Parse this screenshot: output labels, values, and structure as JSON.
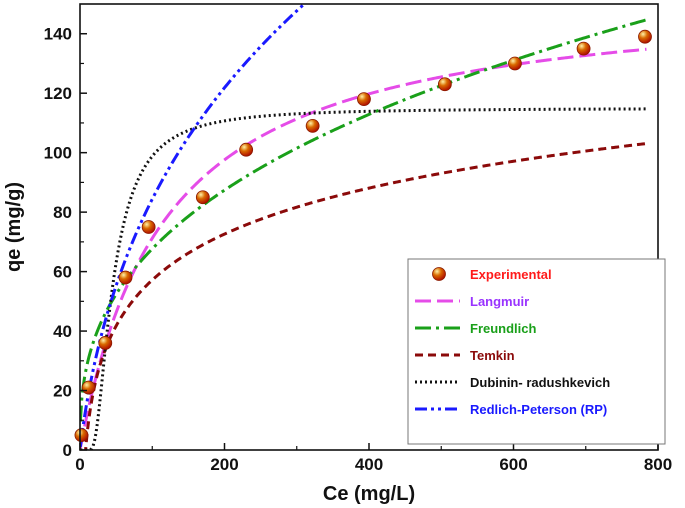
{
  "chart_data": {
    "type": "scatter",
    "title": "",
    "xlabel": "Ce (mg/L)",
    "ylabel": "qe (mg/g)",
    "xlim": [
      0,
      800
    ],
    "ylim": [
      0,
      150
    ],
    "xticks": [
      0,
      200,
      400,
      600,
      800
    ],
    "yticks": [
      0,
      20,
      40,
      60,
      80,
      100,
      120,
      140
    ],
    "xtick_labels": [
      "0",
      "200",
      "400",
      "600",
      "800"
    ],
    "ytick_labels": [
      "0",
      "20",
      "40",
      "60",
      "80",
      "100",
      "120",
      "140"
    ],
    "legend_position": "bottom-right",
    "experimental": {
      "name": "Experimental",
      "color": "#ff1a1a",
      "marker_color": "#d96a00",
      "x": [
        2,
        12,
        35,
        63,
        95,
        170,
        230,
        322,
        393,
        505,
        602,
        697,
        782
      ],
      "y": [
        5,
        21,
        36,
        58,
        75,
        85,
        101,
        109,
        118,
        123,
        130,
        135,
        139
      ]
    },
    "series": [
      {
        "name": "Langmuir",
        "color": "#e54ce8",
        "label_color": "#9933ff",
        "dash": "16,6",
        "model": "langmuir",
        "params": {
          "qm": 155,
          "kl": 0.0085
        }
      },
      {
        "name": "Freundlich",
        "color": "#1aa01a",
        "label_color": "#1aa01a",
        "dash": "16,5,3,5",
        "model": "freundlich",
        "params": {
          "kf": 12.37,
          "n": 2.71
        }
      },
      {
        "name": "Temkin",
        "color": "#8b0a0a",
        "label_color": "#8b0a0a",
        "dash": "8,5",
        "model": "temkin",
        "params": {
          "b": 22.29,
          "a": 0.13
        }
      },
      {
        "name": "Dubinin- radushkevich",
        "color": "#111111",
        "label_color": "#111111",
        "dash": "2,3",
        "model": "dr",
        "params": {
          "qm": 115,
          "beta": 2500
        }
      },
      {
        "name": "Redlich-Peterson (RP)",
        "color": "#1a1aff",
        "label_color": "#1a1aff",
        "dash": "12,4,3,4,3,4",
        "model": "rp",
        "params": {
          "K": 2.2,
          "aR": 0.064,
          "g": 0.7
        }
      }
    ]
  }
}
